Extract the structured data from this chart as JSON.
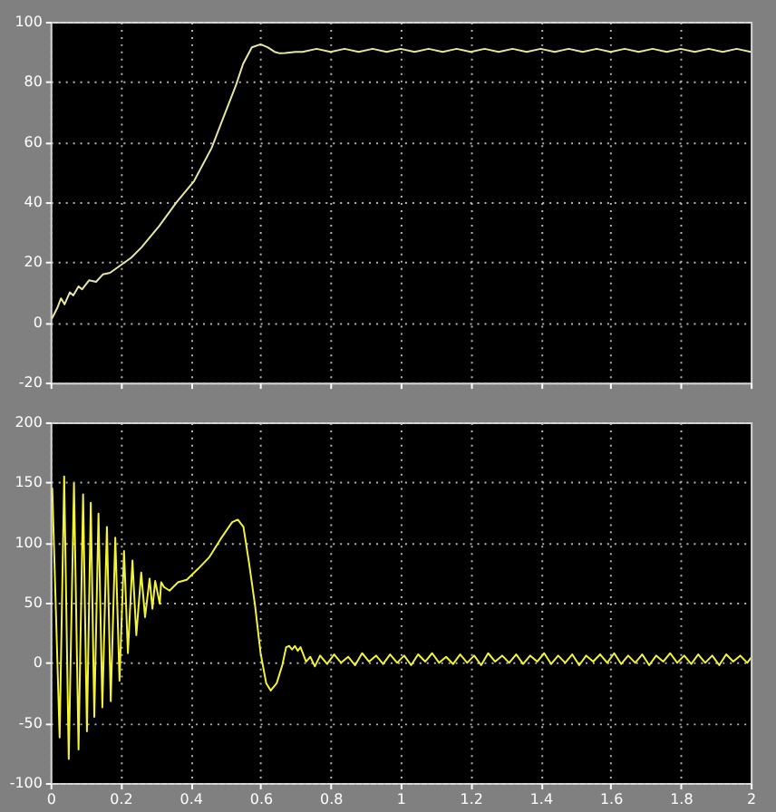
{
  "chart_data": [
    {
      "type": "line",
      "x": [
        0.005,
        0.02,
        0.03,
        0.04,
        0.055,
        0.065,
        0.08,
        0.09,
        0.11,
        0.13,
        0.15,
        0.17,
        0.2,
        0.23,
        0.26,
        0.31,
        0.36,
        0.41,
        0.46,
        0.49,
        0.53,
        0.55,
        0.575,
        0.6,
        0.62,
        0.64,
        0.655,
        0.67,
        0.7,
        0.72,
        0.76,
        0.8,
        0.84,
        0.88,
        0.92,
        0.96,
        1.0,
        1.04,
        1.08,
        1.12,
        1.16,
        1.2,
        1.24,
        1.28,
        1.32,
        1.36,
        1.4,
        1.44,
        1.48,
        1.52,
        1.56,
        1.6,
        1.64,
        1.68,
        1.72,
        1.76,
        1.8,
        1.84,
        1.88,
        1.92,
        1.96,
        2.0
      ],
      "series": [
        {
          "color": "#e6e6a4",
          "values": [
            1.5,
            5,
            8,
            6,
            10,
            9,
            12,
            11,
            14,
            13.5,
            16,
            16.5,
            19,
            21.5,
            25,
            32,
            40,
            47,
            58,
            67,
            79,
            86,
            91.5,
            92.5,
            91.5,
            90,
            89.5,
            89.6,
            90,
            90,
            91,
            90,
            91,
            90,
            91,
            90,
            91,
            90,
            91,
            90,
            91,
            90,
            91,
            90,
            91,
            90,
            91,
            90,
            91,
            90,
            91,
            90,
            91,
            90,
            91,
            90,
            91,
            90,
            91,
            90,
            91,
            90
          ]
        }
      ],
      "xlim": [
        0,
        2
      ],
      "xticks": [
        0,
        0.2,
        0.4,
        0.6,
        0.8,
        1,
        1.2,
        1.4,
        1.6,
        1.8,
        2
      ],
      "ylim": [
        -20,
        100
      ],
      "yticks": [
        -20,
        0,
        20,
        40,
        60,
        80,
        100
      ],
      "grid": true,
      "tick_labels": "y"
    },
    {
      "type": "line",
      "x": [
        0.005,
        0.026,
        0.039,
        0.052,
        0.067,
        0.08,
        0.093,
        0.104,
        0.115,
        0.125,
        0.137,
        0.148,
        0.161,
        0.172,
        0.185,
        0.197,
        0.21,
        0.221,
        0.234,
        0.245,
        0.259,
        0.27,
        0.283,
        0.291,
        0.299,
        0.312,
        0.316,
        0.324,
        0.34,
        0.364,
        0.389,
        0.421,
        0.454,
        0.486,
        0.519,
        0.535,
        0.551,
        0.567,
        0.584,
        0.6,
        0.616,
        0.629,
        0.646,
        0.662,
        0.673,
        0.682,
        0.69,
        0.698,
        0.706,
        0.714,
        0.73,
        0.742,
        0.755,
        0.77,
        0.79,
        0.81,
        0.83,
        0.85,
        0.87,
        0.89,
        0.91,
        0.93,
        0.95,
        0.97,
        0.99,
        1.01,
        1.03,
        1.05,
        1.07,
        1.09,
        1.11,
        1.13,
        1.15,
        1.17,
        1.19,
        1.21,
        1.23,
        1.25,
        1.27,
        1.29,
        1.31,
        1.33,
        1.35,
        1.37,
        1.39,
        1.41,
        1.43,
        1.45,
        1.47,
        1.49,
        1.51,
        1.53,
        1.55,
        1.57,
        1.59,
        1.61,
        1.63,
        1.65,
        1.67,
        1.69,
        1.71,
        1.73,
        1.75,
        1.77,
        1.79,
        1.81,
        1.83,
        1.85,
        1.87,
        1.89,
        1.91,
        1.93,
        1.95,
        1.97,
        1.99,
        2.0
      ],
      "series": [
        {
          "color": "#f2f23a",
          "values": [
            145,
            -62,
            155,
            -80,
            149,
            -72,
            140,
            -57,
            133,
            -45,
            124,
            -37,
            113,
            -32,
            104,
            -15,
            93,
            8,
            85,
            23,
            75,
            38,
            70,
            45,
            68,
            49,
            67,
            63,
            60,
            67,
            69,
            78,
            88,
            103,
            117,
            119,
            113,
            83,
            48,
            8,
            -17,
            -23,
            -17,
            -2,
            13,
            14,
            11,
            14,
            10,
            13,
            1,
            5,
            -3,
            6,
            -1,
            7,
            0,
            5,
            -2,
            8,
            1,
            6,
            -1,
            7,
            0,
            6,
            -2,
            7,
            1,
            8,
            0,
            5,
            -1,
            7,
            0,
            6,
            -2,
            8,
            1,
            6,
            0,
            7,
            -1,
            6,
            1,
            8,
            -1,
            6,
            0,
            7,
            -2,
            6,
            1,
            7,
            0,
            8,
            -1,
            6,
            0,
            7,
            -2,
            6,
            1,
            8,
            0,
            6,
            -1,
            7,
            0,
            6,
            -2,
            7,
            1,
            6,
            0,
            4
          ]
        }
      ],
      "xlim": [
        0,
        2
      ],
      "xticks": [
        0,
        0.2,
        0.4,
        0.6,
        0.8,
        1,
        1.2,
        1.4,
        1.6,
        1.8,
        2
      ],
      "ylim": [
        -100,
        200
      ],
      "yticks": [
        -100,
        -50,
        0,
        50,
        100,
        150,
        200
      ],
      "grid": true
    }
  ]
}
